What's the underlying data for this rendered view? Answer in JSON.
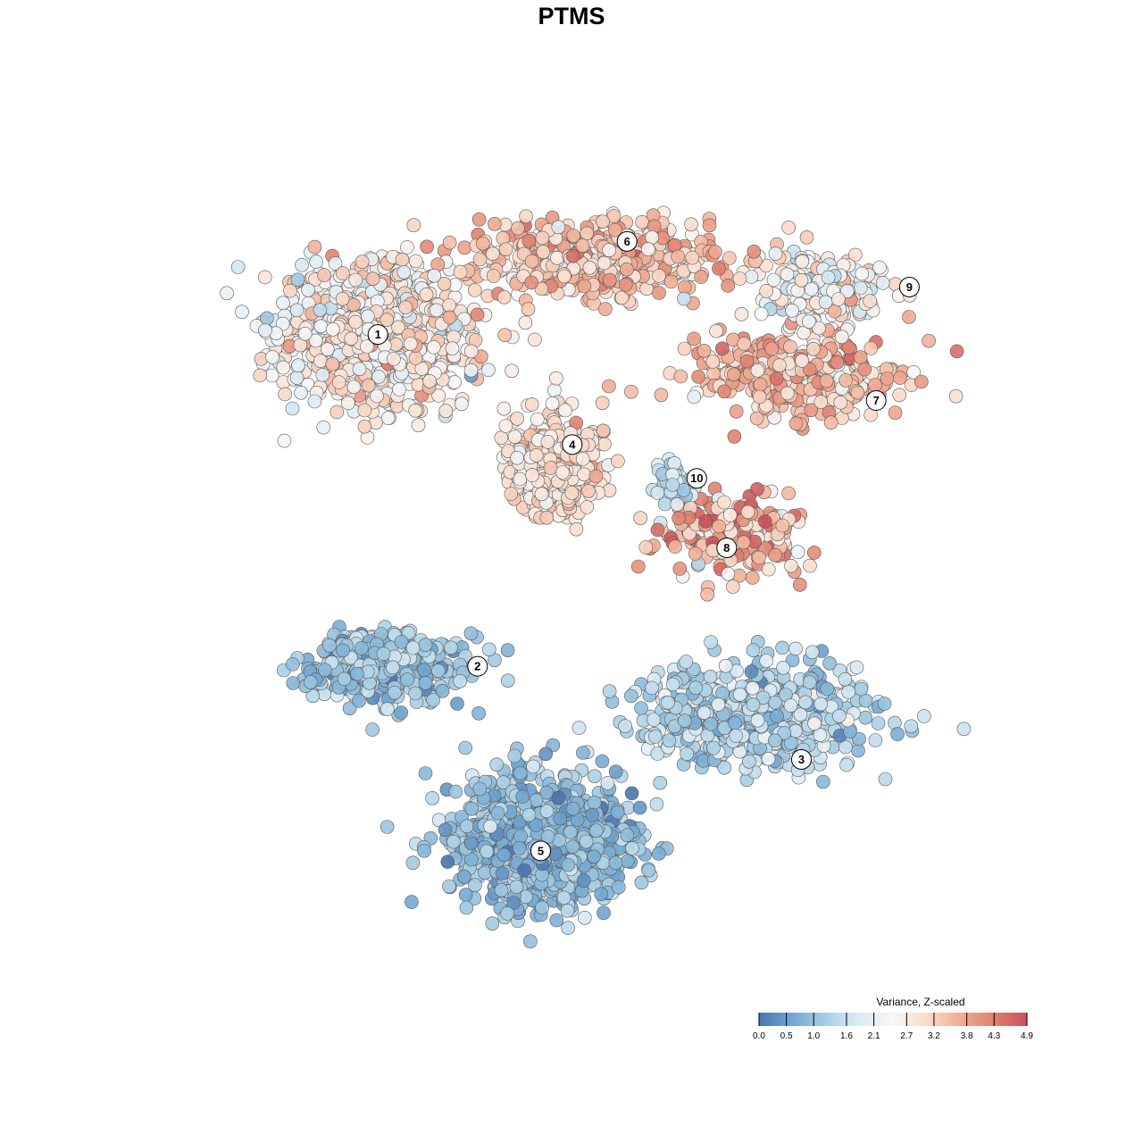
{
  "chart_data": {
    "type": "scatter",
    "title": "PTMS",
    "xlabel": "",
    "ylabel": "",
    "grid": false,
    "axes_visible": false,
    "point_style": {
      "fill": "expression value",
      "stroke": "#555555"
    },
    "colormap": [
      "#4a74ad",
      "#74a8d2",
      "#a9cfe4",
      "#dcebf4",
      "#f7f7f7",
      "#f9dccb",
      "#f1ae95",
      "#e0806f",
      "#c9505d"
    ],
    "clusters": [
      {
        "label": "1",
        "x": -13.0,
        "y": 11.0,
        "sx": 5.2,
        "sy": 3.8,
        "n": 850,
        "mean": 2.65,
        "sd": 0.55
      },
      {
        "label": "2",
        "x": -12.5,
        "y": -8.6,
        "sx": 4.0,
        "sy": 1.7,
        "n": 480,
        "mean": 1.05,
        "sd": 0.4
      },
      {
        "label": "3",
        "x": 9.8,
        "y": -11.5,
        "sx": 6.0,
        "sy": 2.7,
        "n": 650,
        "mean": 1.35,
        "sd": 0.45
      },
      {
        "label": "4",
        "x": -2.5,
        "y": 3.2,
        "sx": 2.4,
        "sy": 2.4,
        "n": 420,
        "mean": 3.0,
        "sd": 0.45
      },
      {
        "label": "5",
        "x": -3.0,
        "y": -19.0,
        "sx": 4.8,
        "sy": 3.4,
        "n": 1100,
        "mean": 0.95,
        "sd": 0.35
      },
      {
        "label": "6",
        "x": 0.0,
        "y": 15.5,
        "sx": 6.5,
        "sy": 1.9,
        "n": 600,
        "mean": 3.35,
        "sd": 0.55
      },
      {
        "label": "7",
        "x": 12.0,
        "y": 8.5,
        "sx": 6.0,
        "sy": 2.3,
        "n": 320,
        "mean": 3.45,
        "sd": 0.5
      },
      {
        "label": "8",
        "x": 8.5,
        "y": -0.8,
        "sx": 3.8,
        "sy": 2.1,
        "n": 210,
        "mean": 3.6,
        "sd": 0.75
      },
      {
        "label": "9",
        "x": 13.8,
        "y": 13.5,
        "sx": 3.4,
        "sy": 1.9,
        "n": 180,
        "mean": 2.4,
        "sd": 0.5
      },
      {
        "label": "10",
        "x": 4.8,
        "y": 2.0,
        "sx": 0.9,
        "sy": 1.1,
        "n": 60,
        "mean": 1.55,
        "sd": 0.35
      }
    ],
    "label_points": [
      {
        "label": "1",
        "x": -13.0,
        "y": 11.0
      },
      {
        "label": "2",
        "x": -7.0,
        "y": -8.6
      },
      {
        "label": "3",
        "x": 12.5,
        "y": -14.1
      },
      {
        "label": "4",
        "x": -1.3,
        "y": 4.5
      },
      {
        "label": "5",
        "x": -3.2,
        "y": -19.5
      },
      {
        "label": "6",
        "x": 2.0,
        "y": 16.5
      },
      {
        "label": "7",
        "x": 17.0,
        "y": 7.1
      },
      {
        "label": "8",
        "x": 8.0,
        "y": -1.6
      },
      {
        "label": "9",
        "x": 19.0,
        "y": 13.8
      },
      {
        "label": "10",
        "x": 6.2,
        "y": 2.5
      }
    ],
    "xlim": [
      -25,
      25
    ],
    "ylim": [
      -27,
      21
    ],
    "legend": {
      "title": "Variance, Z-scaled",
      "position": "bottom-right",
      "orientation": "horizontal",
      "min": 0.0,
      "max": 4.9,
      "ticks": [
        0.0,
        0.5,
        1.0,
        1.6,
        2.1,
        2.7,
        3.2,
        3.8,
        4.3,
        4.9
      ],
      "tick_labels": [
        "0.0",
        "0.5",
        "1.0",
        "1.6",
        "2.1",
        "2.7",
        "3.2",
        "3.8",
        "4.3",
        "4.9"
      ]
    }
  }
}
